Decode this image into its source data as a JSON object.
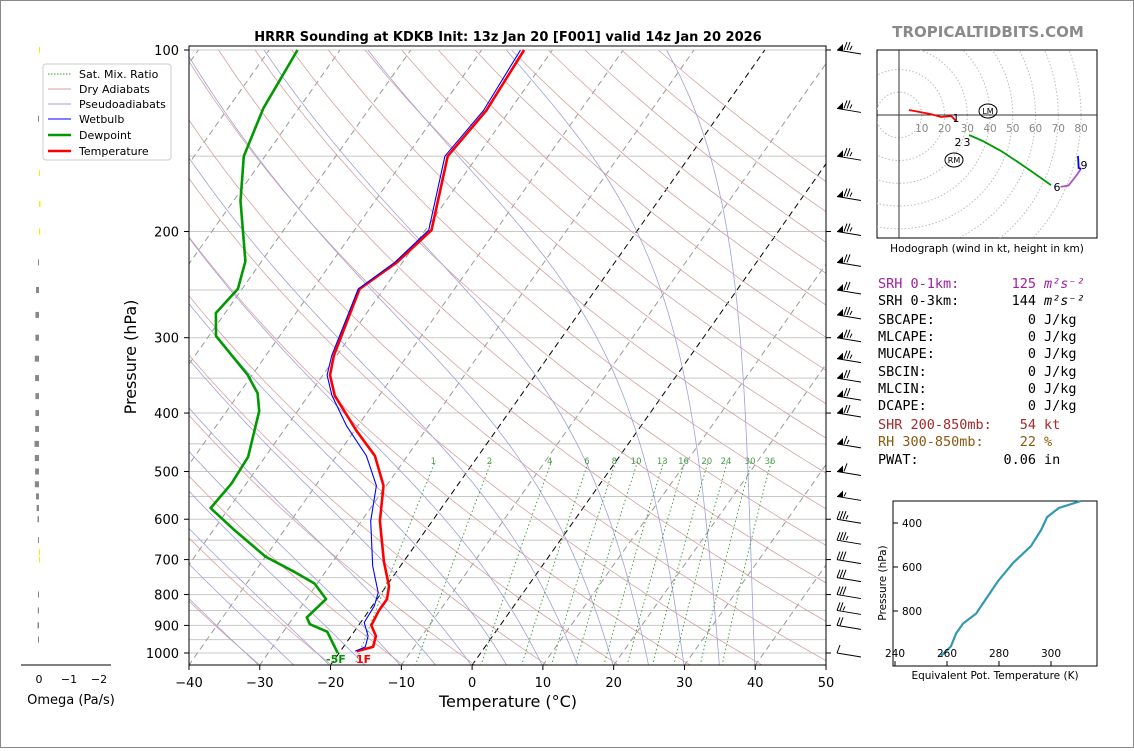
{
  "title": "HRRR Sounding at KDKB Init: 13z Jan 20 [F001] valid 14z Jan 20 2026",
  "watermark": "TROPICALTIDBITS.COM",
  "legend": [
    "Sat. Mix. Ratio",
    "Dry Adiabats",
    "Pseudoadiabats",
    "Wetbulb",
    "Dewpoint",
    "Temperature"
  ],
  "colors": {
    "temperature": "#ff0000",
    "dewpoint": "#009900",
    "wetbulb": "#0000ff",
    "dry": "#d9a0a0",
    "moist": "#a0a0d9",
    "mix": "#339933",
    "thetae": "#3399b3"
  },
  "omega_axis": {
    "label": "Omega (Pa/s)",
    "ticks": [
      "0",
      "−1",
      "−2"
    ]
  },
  "surface_labels": {
    "dewpoint": "-5F",
    "temperature": "1F"
  },
  "chart_data": {
    "type": "line",
    "title": "HRRR Sounding at KDKB Init: 13z Jan 20 [F001] valid 14z Jan 20 2026",
    "xlabel": "Temperature (°C)",
    "ylabel": "Pressure (hPa)",
    "xlim": [
      -40,
      50
    ],
    "ylim": [
      1050,
      100
    ],
    "xticks": [
      "−40",
      "−30",
      "−20",
      "−10",
      "0",
      "10",
      "20",
      "30",
      "40",
      "50"
    ],
    "yticks": [
      "100",
      "200",
      "300",
      "400",
      "500",
      "600",
      "700",
      "800",
      "900",
      "1000"
    ],
    "mixing_ratio_labels": [
      "1",
      "2",
      "4",
      "6",
      "8",
      "10",
      "13",
      "16",
      "20",
      "24",
      "30",
      "36"
    ],
    "temperature": {
      "p": [
        993,
        977,
        937,
        900,
        851,
        814,
        775,
        705,
        604,
        528,
        471,
        428,
        374,
        346,
        321,
        249,
        225,
        199,
        150,
        126,
        100
      ],
      "T": [
        -17.7,
        -15.8,
        -16.5,
        -18.2,
        -18.6,
        -18.6,
        -19.6,
        -22.8,
        -27.4,
        -30.4,
        -34.6,
        -39.7,
        -46.3,
        -49.0,
        -50.4,
        -53.4,
        -50.8,
        -49.1,
        -54.2,
        -53.3,
        -54.0
      ]
    },
    "wetbulb": {
      "p": [
        993,
        977,
        937,
        890,
        836,
        794,
        718,
        604,
        528,
        471,
        420,
        374,
        346,
        321,
        249,
        225,
        199,
        150,
        126,
        100
      ],
      "T": [
        -17.9,
        -16.9,
        -17.6,
        -19.5,
        -19.7,
        -20.5,
        -23.9,
        -28.7,
        -31.4,
        -35.8,
        -41.6,
        -46.7,
        -49.4,
        -50.7,
        -53.6,
        -51.1,
        -49.5,
        -54.6,
        -53.7,
        -54.5
      ]
    },
    "dewpoint": {
      "p": [
        1000,
        922,
        896,
        873,
        814,
        767,
        736,
        692,
        623,
        575,
        524,
        473,
        397,
        371,
        346,
        298,
        273,
        249,
        224,
        178,
        150,
        125,
        100
      ],
      "T": [
        -20.2,
        -23.8,
        -27.0,
        -28.1,
        -27.2,
        -30.4,
        -34.1,
        -40.0,
        -47.3,
        -52.6,
        -52.1,
        -52.4,
        -55.4,
        -57.4,
        -60.6,
        -69.0,
        -71.3,
        -70.6,
        -72.3,
        -79.0,
        -83.0,
        -85.0,
        -86.0
      ]
    },
    "winds_kt": {
      "p": [
        100,
        125,
        150,
        175,
        200,
        225,
        250,
        275,
        300,
        325,
        350,
        375,
        400,
        450,
        500,
        550,
        600,
        650,
        700,
        750,
        800,
        850,
        900,
        1000
      ],
      "speed": [
        75,
        75,
        75,
        75,
        75,
        70,
        70,
        75,
        75,
        75,
        70,
        70,
        70,
        65,
        60,
        55,
        35,
        35,
        30,
        30,
        30,
        25,
        20,
        10
      ]
    },
    "omega": {
      "p": [
        100,
        130,
        160,
        180,
        200,
        225,
        250,
        275,
        300,
        325,
        350,
        375,
        400,
        425,
        450,
        475,
        500,
        525,
        550,
        575,
        600,
        650,
        680,
        700,
        800,
        850,
        900,
        950
      ],
      "value": [
        -0.02,
        0.02,
        -0.02,
        -0.05,
        -0.04,
        0.03,
        0.1,
        0.12,
        0.12,
        0.14,
        0.13,
        0.12,
        0.12,
        0.13,
        0.15,
        0.14,
        0.13,
        0.14,
        0.1,
        0.08,
        0.05,
        0.02,
        -0.02,
        -0.03,
        0.02,
        0.04,
        0.05,
        0.03
      ]
    }
  },
  "hodograph": {
    "caption": "Hodograph (wind in kt, height in km)",
    "ring_labels": [
      "10",
      "20",
      "30",
      "40",
      "50",
      "60",
      "70",
      "80"
    ],
    "height_labels": [
      "1",
      "2",
      "3",
      "6",
      "9"
    ],
    "lm_label": "LM",
    "rm_label": "RM",
    "segments": [
      {
        "color": "#ff0000",
        "u": [
          4.4,
          14,
          18.5,
          23,
          25
        ],
        "v": [
          2.2,
          0.4,
          -0.9,
          -0.5,
          -2.6
        ]
      },
      {
        "color": "#009900",
        "u": [
          30.8,
          37,
          44.8,
          52,
          58,
          66.8
        ],
        "v": [
          -8.8,
          -11.5,
          -15.8,
          -20.5,
          -24.6,
          -30.8
        ]
      },
      {
        "color": "#b050c0",
        "u": [
          71,
          74.5,
          77.8,
          80
        ],
        "v": [
          -31.6,
          -31,
          -26.8,
          -23.7
        ]
      },
      {
        "color": "#0000ff",
        "u": [
          80,
          79,
          78.7
        ],
        "v": [
          -23.7,
          -23.3,
          -18
        ]
      }
    ]
  },
  "stats": [
    {
      "label": "SRH 0-1km:",
      "value": "125",
      "unit": "m²s⁻²",
      "color": "#a020a0"
    },
    {
      "label": "SRH 0-3km:",
      "value": "144",
      "unit": "m²s⁻²",
      "color": "#000000"
    },
    {
      "label": "SBCAPE:",
      "value": "0",
      "unit": "J/kg",
      "color": "#000000"
    },
    {
      "label": "MLCAPE:",
      "value": "0",
      "unit": "J/kg",
      "color": "#000000"
    },
    {
      "label": "MUCAPE:",
      "value": "0",
      "unit": "J/kg",
      "color": "#000000"
    },
    {
      "label": "SBCIN:",
      "value": "0",
      "unit": "J/kg",
      "color": "#000000"
    },
    {
      "label": "MLCIN:",
      "value": "0",
      "unit": "J/kg",
      "color": "#000000"
    },
    {
      "label": "DCAPE:",
      "value": "0",
      "unit": "J/kg",
      "color": "#000000"
    },
    {
      "label": "SHR 200-850mb:",
      "value": "54",
      "unit": "kt",
      "color": "#a52a2a"
    },
    {
      "label": "RH 300-850mb:",
      "value": "22",
      "unit": "%",
      "color": "#8b5a10"
    },
    {
      "label": "PWAT:",
      "value": "0.06",
      "unit": "in",
      "color": "#000000"
    }
  ],
  "thetae": {
    "xlabel": "Equivalent Pot. Temperature (K)",
    "ylabel": "Pressure (hPa)",
    "xticks": [
      "240",
      "260",
      "280",
      "300"
    ],
    "yticks": [
      "400",
      "600",
      "800"
    ],
    "p": [
      1004,
      961,
      902,
      857,
      812,
      745,
      664,
      582,
      505,
      432,
      373,
      332,
      300
    ],
    "theta_e": [
      257.7,
      261.5,
      263.5,
      266.2,
      271.2,
      275,
      279.6,
      285.4,
      292.3,
      296.2,
      298.5,
      303,
      311.5
    ]
  }
}
